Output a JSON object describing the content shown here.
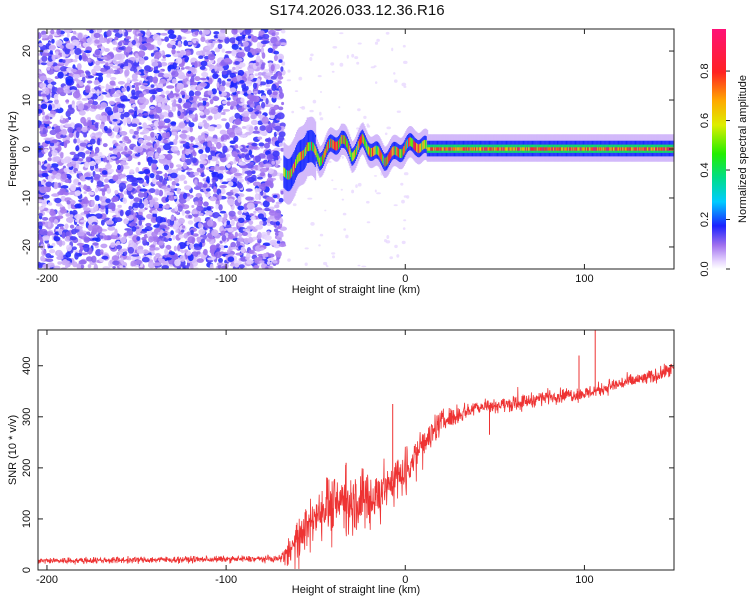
{
  "title": "S174.2026.033.12.36.R16",
  "chart_data": [
    {
      "type": "heatmap",
      "xlabel": "Height of straight line (km)",
      "ylabel": "Frequency (Hz)",
      "xlim": [
        -205,
        150
      ],
      "ylim": [
        -24.5,
        24.5
      ],
      "xticks": [
        -200,
        -100,
        0,
        100
      ],
      "yticks": [
        -20,
        -10,
        0,
        10,
        20
      ],
      "colorbar": {
        "label": "Normalized spectral amplitude",
        "range": [
          0,
          0.97
        ],
        "ticks": [
          0.0,
          0.2,
          0.4,
          0.6,
          0.8
        ]
      },
      "regions": [
        {
          "x_range": [
            -205,
            -68
          ],
          "description": "broadband noise",
          "freq_range": [
            -24.5,
            24.5
          ],
          "amplitude": [
            0.05,
            0.2
          ]
        },
        {
          "x_range": [
            -68,
            12
          ],
          "description": "wandering tone",
          "freq_center_points": [
            [
              -68,
              -5
            ],
            [
              -62,
              -4
            ],
            [
              -55,
              1
            ],
            [
              -48,
              -2
            ],
            [
              -42,
              0.5
            ],
            [
              -36,
              2
            ],
            [
              -30,
              -1
            ],
            [
              -24,
              1.5
            ],
            [
              -18,
              -0.5
            ],
            [
              -12,
              -2
            ],
            [
              -6,
              -1
            ],
            [
              0,
              0.5
            ],
            [
              6,
              1
            ],
            [
              12,
              0
            ]
          ],
          "amplitude": [
            0.3,
            0.9
          ]
        },
        {
          "x_range": [
            12,
            150
          ],
          "description": "stable tone",
          "freq_center": 0,
          "amplitude": [
            0.6,
            0.95
          ]
        }
      ]
    },
    {
      "type": "line",
      "xlabel": "Height of straight line (km)",
      "ylabel": "SNR (10 * v/v)",
      "xlim": [
        -205,
        150
      ],
      "ylim": [
        0,
        470
      ],
      "xticks": [
        -200,
        -100,
        0,
        100
      ],
      "yticks": [
        0,
        100,
        200,
        300,
        400
      ],
      "series_color": "#ee3333",
      "trend": {
        "x": [
          -205,
          -70,
          -62,
          -50,
          -40,
          -30,
          -20,
          -10,
          0,
          10,
          20,
          30,
          40,
          60,
          80,
          100,
          120,
          140,
          150
        ],
        "y": [
          18,
          22,
          50,
          110,
          140,
          135,
          140,
          165,
          195,
          250,
          290,
          305,
          320,
          325,
          340,
          345,
          365,
          380,
          395
        ]
      },
      "spread": {
        "x": [
          -205,
          -70,
          -60,
          -40,
          -20,
          0,
          20,
          40,
          150
        ],
        "y": [
          8,
          8,
          45,
          70,
          75,
          50,
          30,
          18,
          18
        ]
      },
      "spikes": [
        [
          106,
          470
        ],
        [
          -7,
          325
        ],
        [
          -33,
          210
        ],
        [
          47,
          265
        ],
        [
          65,
          310
        ],
        [
          97,
          420
        ]
      ]
    }
  ]
}
